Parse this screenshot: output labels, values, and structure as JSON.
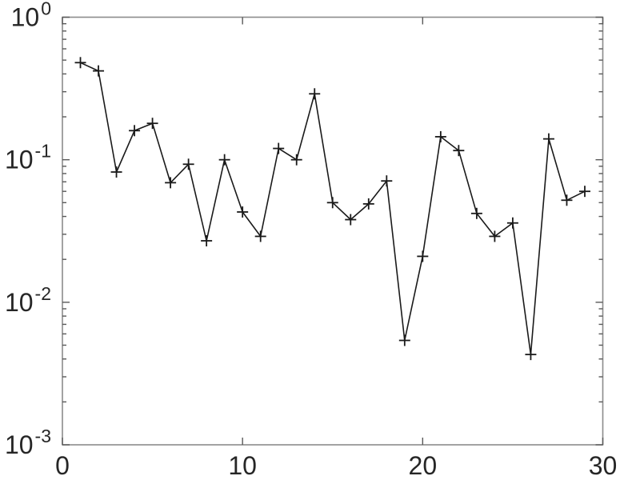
{
  "chart_data": {
    "type": "line",
    "title": "",
    "xlabel": "",
    "ylabel": "",
    "yscale": "log",
    "grid": false,
    "legend": null,
    "marker": "plus",
    "marker_size": 7,
    "line_color": "#1a1a1a",
    "axis_box_color": "#8c8c8c",
    "tick_color": "#595959",
    "label_color": "#262626",
    "background_color": "#ffffff",
    "xlim": [
      0,
      30
    ],
    "ylim_log10": [
      -3,
      0
    ],
    "xticks": [
      0,
      10,
      20,
      30
    ],
    "ytick_base": "10",
    "yticks_exponents": [
      0,
      -1,
      -2,
      -3
    ],
    "x": [
      1,
      2,
      3,
      4,
      5,
      6,
      7,
      8,
      9,
      10,
      11,
      12,
      13,
      14,
      15,
      16,
      17,
      18,
      19,
      20,
      21,
      22,
      23,
      24,
      25,
      26,
      27,
      28,
      29
    ],
    "y": [
      0.48,
      0.42,
      0.082,
      0.16,
      0.18,
      0.069,
      0.093,
      0.027,
      0.1,
      0.043,
      0.029,
      0.12,
      0.1,
      0.29,
      0.05,
      0.038,
      0.049,
      0.071,
      0.0054,
      0.021,
      0.145,
      0.116,
      0.042,
      0.029,
      0.036,
      0.0043,
      0.14,
      0.052,
      0.06
    ]
  }
}
